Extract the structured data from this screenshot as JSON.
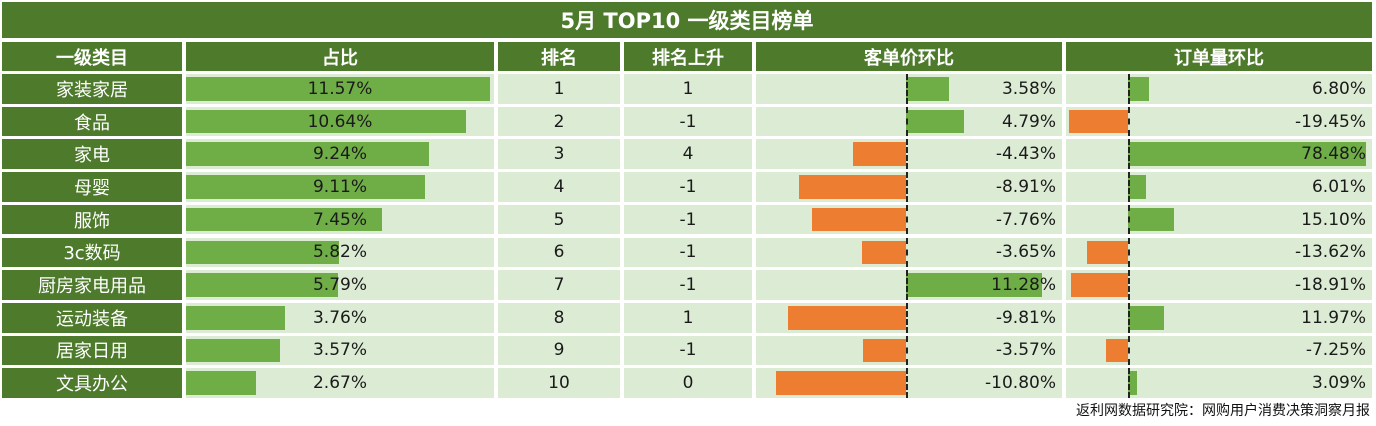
{
  "title": "5月 TOP10 一级类目榜单",
  "source": "返利网数据研究院：网购用户消费决策洞察月报",
  "columns": [
    "一级类目",
    "占比",
    "排名",
    "排名上升",
    "客单价环比",
    "订单量环比"
  ],
  "colors": {
    "header": "#4e7a2c",
    "pale": "#dcebd4",
    "positive": "#6fad47",
    "negative": "#ed7d31"
  },
  "chart_data": {
    "type": "table",
    "title": "5月 TOP10 一级类目榜单",
    "rows": [
      {
        "category": "家装家居",
        "share": 11.57,
        "share_label": "11.57%",
        "rank": "1",
        "rank_change": "1",
        "aov": 3.58,
        "aov_label": "3.58%",
        "orders": 6.8,
        "orders_label": "6.80%"
      },
      {
        "category": "食品",
        "share": 10.64,
        "share_label": "10.64%",
        "rank": "2",
        "rank_change": "-1",
        "aov": 4.79,
        "aov_label": "4.79%",
        "orders": -19.45,
        "orders_label": "-19.45%"
      },
      {
        "category": "家电",
        "share": 9.24,
        "share_label": "9.24%",
        "rank": "3",
        "rank_change": "4",
        "aov": -4.43,
        "aov_label": "-4.43%",
        "orders": 78.48,
        "orders_label": "78.48%"
      },
      {
        "category": "母婴",
        "share": 9.11,
        "share_label": "9.11%",
        "rank": "4",
        "rank_change": "-1",
        "aov": -8.91,
        "aov_label": "-8.91%",
        "orders": 6.01,
        "orders_label": "6.01%"
      },
      {
        "category": "服饰",
        "share": 7.45,
        "share_label": "7.45%",
        "rank": "5",
        "rank_change": "-1",
        "aov": -7.76,
        "aov_label": "-7.76%",
        "orders": 15.1,
        "orders_label": "15.10%"
      },
      {
        "category": "3c数码",
        "share": 5.82,
        "share_label": "5.82%",
        "rank": "6",
        "rank_change": "-1",
        "aov": -3.65,
        "aov_label": "-3.65%",
        "orders": -13.62,
        "orders_label": "-13.62%"
      },
      {
        "category": "厨房家电用品",
        "share": 5.79,
        "share_label": "5.79%",
        "rank": "7",
        "rank_change": "-1",
        "aov": 11.28,
        "aov_label": "11.28%",
        "orders": -18.91,
        "orders_label": "-18.91%"
      },
      {
        "category": "运动装备",
        "share": 3.76,
        "share_label": "3.76%",
        "rank": "8",
        "rank_change": "1",
        "aov": -9.81,
        "aov_label": "-9.81%",
        "orders": 11.97,
        "orders_label": "11.97%"
      },
      {
        "category": "居家日用",
        "share": 3.57,
        "share_label": "3.57%",
        "rank": "9",
        "rank_change": "-1",
        "aov": -3.57,
        "aov_label": "-3.57%",
        "orders": -7.25,
        "orders_label": "-7.25%"
      },
      {
        "category": "文具办公",
        "share": 2.67,
        "share_label": "2.67%",
        "rank": "10",
        "rank_change": "0",
        "aov": -10.8,
        "aov_label": "-10.80%",
        "orders": 3.09,
        "orders_label": "3.09%"
      }
    ]
  }
}
